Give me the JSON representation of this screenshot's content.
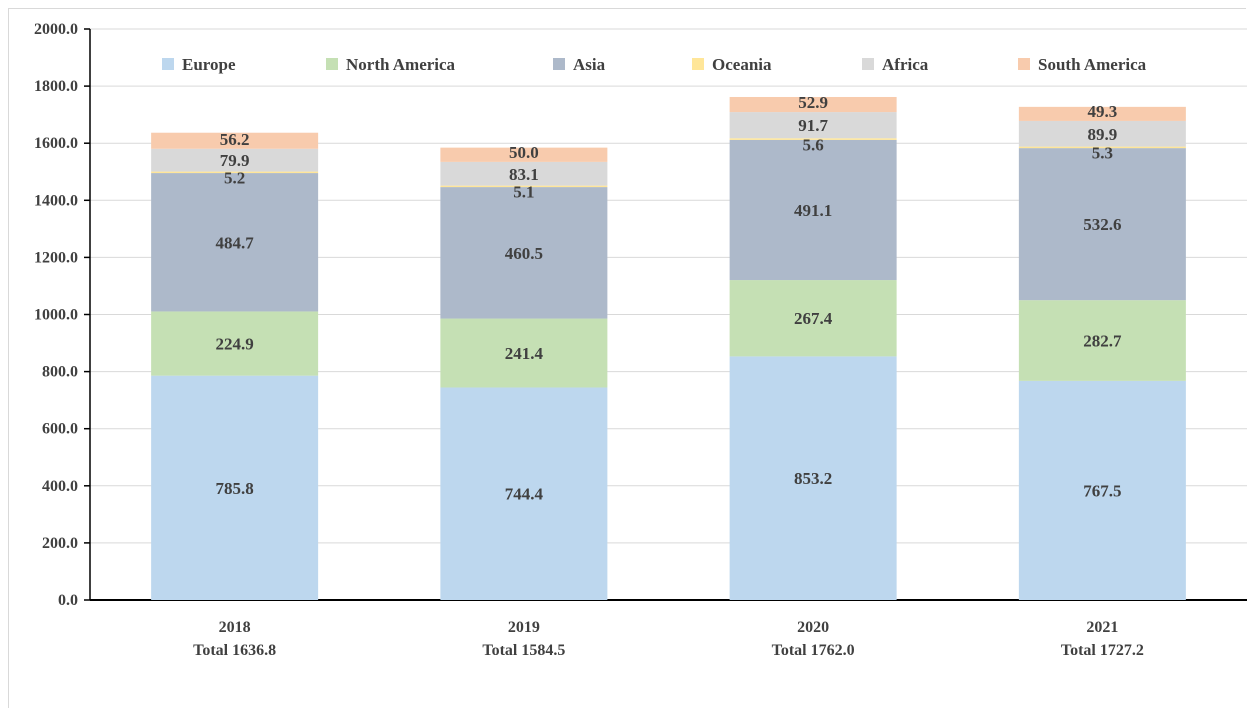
{
  "chart_data": {
    "type": "bar",
    "stacked": true,
    "title": "",
    "xlabel": "",
    "ylabel": "",
    "ylim": [
      0,
      2000
    ],
    "y_ticks": [
      "0.0",
      "200.0",
      "400.0",
      "600.0",
      "800.0",
      "1000.0",
      "1200.0",
      "1400.0",
      "1600.0",
      "1800.0",
      "2000.0"
    ],
    "grid": true,
    "legend_position": "top",
    "categories": [
      "2018",
      "2019",
      "2020",
      "2021"
    ],
    "category_sublabels": [
      "Total 1636.8",
      "Total 1584.5",
      "Total 1762.0",
      "Total 1727.2"
    ],
    "series": [
      {
        "name": "Europe",
        "color": "#bdd7ee",
        "values": [
          785.8,
          744.4,
          853.2,
          767.5
        ],
        "labels": [
          "785.8",
          "744.4",
          "853.2",
          "767.5"
        ]
      },
      {
        "name": "North America",
        "color": "#c5e0b4",
        "values": [
          224.9,
          241.4,
          267.4,
          282.7
        ],
        "labels": [
          "224.9",
          "241.4",
          "267.4",
          "282.7"
        ]
      },
      {
        "name": "Asia",
        "color": "#adb9ca",
        "values": [
          484.7,
          460.5,
          491.1,
          532.6
        ],
        "labels": [
          "484.7",
          "460.5",
          "491.1",
          "532.6"
        ]
      },
      {
        "name": "Oceania",
        "color": "#ffe699",
        "values": [
          5.2,
          5.1,
          5.6,
          5.3
        ],
        "labels": [
          "5.2",
          "5.1",
          "5.6",
          "5.3"
        ]
      },
      {
        "name": "Africa",
        "color": "#d9d9d9",
        "values": [
          79.9,
          83.1,
          91.7,
          89.9
        ],
        "labels": [
          "79.9",
          "83.1",
          "91.7",
          "89.9"
        ]
      },
      {
        "name": "South America",
        "color": "#f8cbad",
        "values": [
          56.2,
          50.0,
          52.9,
          49.3
        ],
        "labels": [
          "56.2",
          "50.0",
          "52.9",
          "49.3"
        ]
      }
    ]
  }
}
